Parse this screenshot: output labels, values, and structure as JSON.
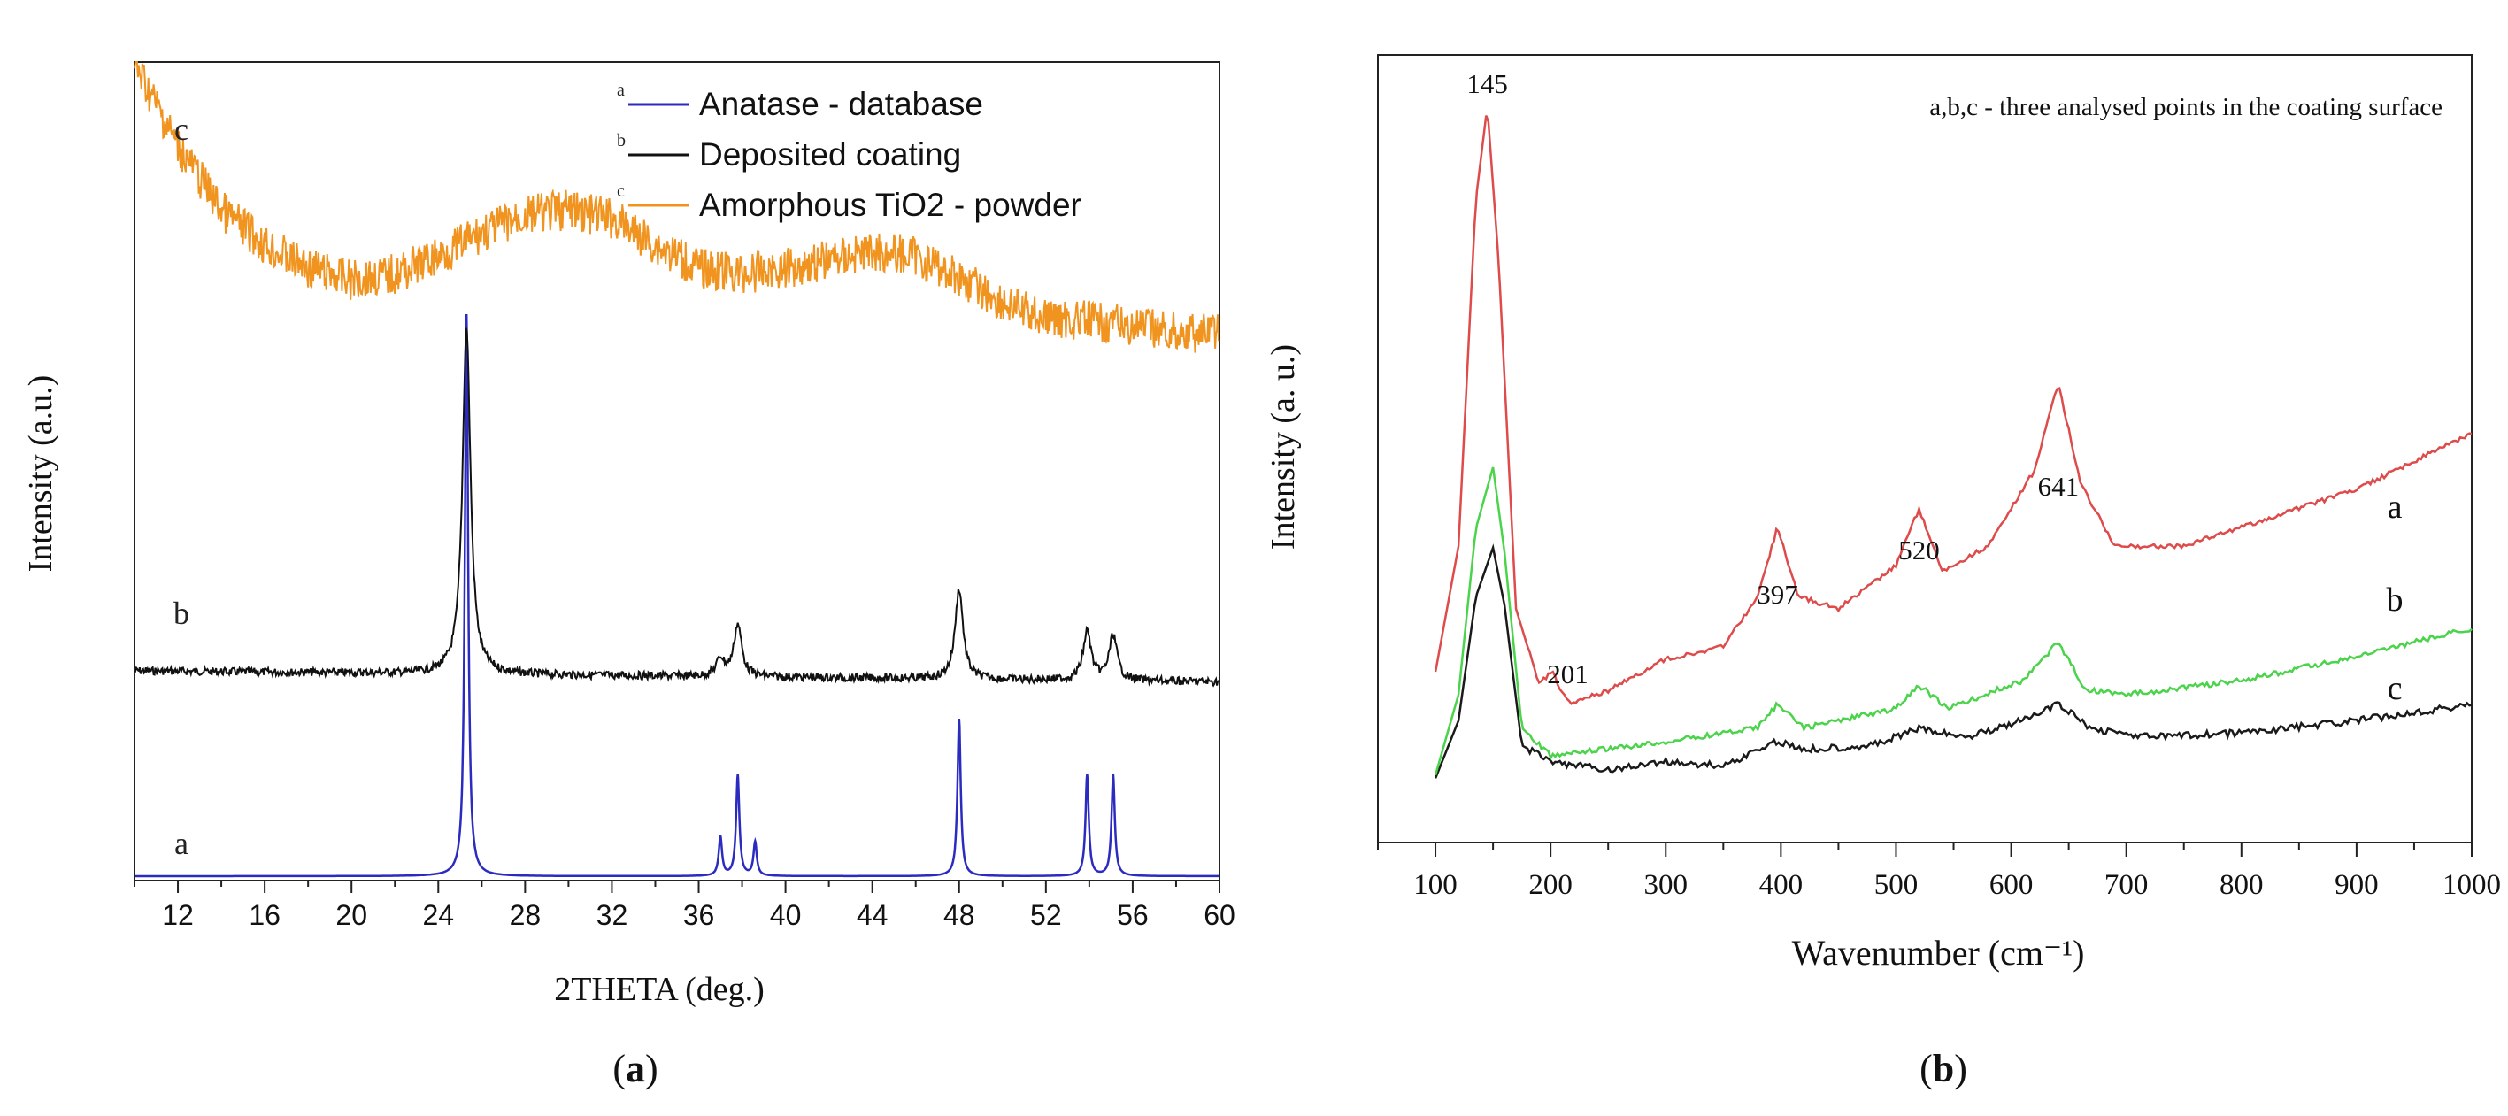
{
  "chart_data": [
    {
      "type": "line",
      "panel_label": "a",
      "xlabel": "2THETA (deg.)",
      "ylabel": "Intensity (a.u.)",
      "xlim": [
        10,
        60
      ],
      "xticks": [
        12,
        16,
        20,
        24,
        28,
        32,
        36,
        40,
        44,
        48,
        52,
        56,
        60
      ],
      "legend": [
        {
          "key": "a",
          "label": "Anatase - database",
          "color": "#2b2bbf"
        },
        {
          "key": "b",
          "label": "Deposited coating",
          "color": "#111111"
        },
        {
          "key": "c",
          "label": "Amorphous TiO2 - powder",
          "color": "#f0941f"
        }
      ],
      "series": [
        {
          "name": "Anatase - database",
          "label": "a",
          "color": "#2b2bbf",
          "baseline": 0.0,
          "peaks": [
            {
              "x": 25.3,
              "height": 1.0
            },
            {
              "x": 37.0,
              "height": 0.07
            },
            {
              "x": 37.8,
              "height": 0.18
            },
            {
              "x": 38.6,
              "height": 0.06
            },
            {
              "x": 48.0,
              "height": 0.28
            },
            {
              "x": 53.9,
              "height": 0.18
            },
            {
              "x": 55.1,
              "height": 0.18
            }
          ]
        },
        {
          "name": "Deposited coating",
          "label": "b",
          "color": "#111111",
          "baseline": 0.0,
          "peaks": [
            {
              "x": 25.3,
              "height": 1.0
            },
            {
              "x": 37.0,
              "height": 0.05
            },
            {
              "x": 37.8,
              "height": 0.15
            },
            {
              "x": 48.0,
              "height": 0.26
            },
            {
              "x": 53.9,
              "height": 0.14
            },
            {
              "x": 55.1,
              "height": 0.13
            }
          ]
        },
        {
          "name": "Amorphous TiO2 - powder",
          "label": "c",
          "color": "#f0941f",
          "points": [
            [
              10,
              1.0
            ],
            [
              12,
              0.72
            ],
            [
              14,
              0.5
            ],
            [
              16,
              0.38
            ],
            [
              18,
              0.3
            ],
            [
              20,
              0.26
            ],
            [
              22,
              0.28
            ],
            [
              24,
              0.34
            ],
            [
              26,
              0.42
            ],
            [
              28,
              0.48
            ],
            [
              30,
              0.5
            ],
            [
              32,
              0.47
            ],
            [
              34,
              0.38
            ],
            [
              36,
              0.3
            ],
            [
              38,
              0.28
            ],
            [
              40,
              0.3
            ],
            [
              42,
              0.33
            ],
            [
              44,
              0.36
            ],
            [
              46,
              0.34
            ],
            [
              48,
              0.27
            ],
            [
              50,
              0.18
            ],
            [
              52,
              0.13
            ],
            [
              54,
              0.12
            ],
            [
              56,
              0.1
            ],
            [
              58,
              0.08
            ],
            [
              60,
              0.08
            ]
          ]
        }
      ]
    },
    {
      "type": "line",
      "panel_label": "b",
      "title": "a,b,c - three analysed points in the coating surface",
      "xlabel": "Wavenumber (cm⁻¹)",
      "ylabel": "Intensity (a. u.)",
      "xlim": [
        50,
        1000
      ],
      "xticks": [
        100,
        200,
        300,
        400,
        500,
        600,
        700,
        800,
        900,
        1000
      ],
      "peak_labels": [
        {
          "x": 145,
          "label": "145"
        },
        {
          "x": 201,
          "label": "201"
        },
        {
          "x": 397,
          "label": "397"
        },
        {
          "x": 520,
          "label": "520"
        },
        {
          "x": 641,
          "label": "641"
        }
      ],
      "series": [
        {
          "name": "a",
          "label": "a",
          "color": "#dd4b4b",
          "points": [
            [
              100,
              0.1
            ],
            [
              120,
              0.3
            ],
            [
              135,
              0.85
            ],
            [
              145,
              1.0
            ],
            [
              155,
              0.75
            ],
            [
              170,
              0.2
            ],
            [
              190,
              0.08
            ],
            [
              201,
              0.1
            ],
            [
              215,
              0.05
            ],
            [
              250,
              0.07
            ],
            [
              300,
              0.12
            ],
            [
              350,
              0.14
            ],
            [
              380,
              0.22
            ],
            [
              397,
              0.33
            ],
            [
              415,
              0.22
            ],
            [
              450,
              0.2
            ],
            [
              500,
              0.27
            ],
            [
              520,
              0.36
            ],
            [
              540,
              0.26
            ],
            [
              580,
              0.3
            ],
            [
              620,
              0.42
            ],
            [
              641,
              0.56
            ],
            [
              660,
              0.4
            ],
            [
              690,
              0.3
            ],
            [
              750,
              0.3
            ],
            [
              800,
              0.33
            ],
            [
              900,
              0.39
            ],
            [
              1000,
              0.48
            ]
          ]
        },
        {
          "name": "b",
          "label": "b",
          "color": "#4bd34b",
          "points": [
            [
              100,
              -0.02
            ],
            [
              120,
              0.15
            ],
            [
              135,
              0.5
            ],
            [
              150,
              0.63
            ],
            [
              160,
              0.45
            ],
            [
              175,
              0.08
            ],
            [
              200,
              0.02
            ],
            [
              300,
              0.05
            ],
            [
              380,
              0.08
            ],
            [
              397,
              0.13
            ],
            [
              420,
              0.08
            ],
            [
              500,
              0.12
            ],
            [
              520,
              0.17
            ],
            [
              545,
              0.12
            ],
            [
              610,
              0.18
            ],
            [
              641,
              0.26
            ],
            [
              665,
              0.16
            ],
            [
              700,
              0.15
            ],
            [
              800,
              0.18
            ],
            [
              900,
              0.23
            ],
            [
              1000,
              0.29
            ]
          ]
        },
        {
          "name": "c",
          "label": "c",
          "color": "#1a1a1a",
          "points": [
            [
              100,
              -0.02
            ],
            [
              120,
              0.12
            ],
            [
              135,
              0.42
            ],
            [
              150,
              0.54
            ],
            [
              160,
              0.4
            ],
            [
              175,
              0.06
            ],
            [
              200,
              0.02
            ],
            [
              250,
              0.0
            ],
            [
              300,
              0.02
            ],
            [
              350,
              0.01
            ],
            [
              397,
              0.07
            ],
            [
              420,
              0.05
            ],
            [
              480,
              0.06
            ],
            [
              520,
              0.1
            ],
            [
              560,
              0.08
            ],
            [
              610,
              0.12
            ],
            [
              641,
              0.16
            ],
            [
              670,
              0.1
            ],
            [
              720,
              0.08
            ],
            [
              800,
              0.09
            ],
            [
              900,
              0.12
            ],
            [
              1000,
              0.16
            ]
          ]
        }
      ]
    }
  ]
}
